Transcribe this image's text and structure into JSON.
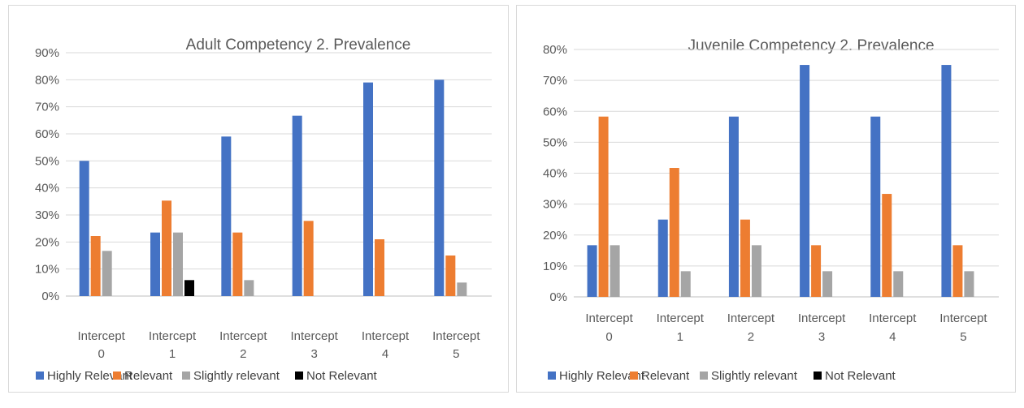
{
  "chart_data": [
    {
      "type": "bar",
      "title": "Adult Competency 2. Prevalence",
      "categories": [
        [
          "Intercept",
          "0"
        ],
        [
          "Intercept",
          "1"
        ],
        [
          "Intercept",
          "2"
        ],
        [
          "Intercept",
          "3"
        ],
        [
          "Intercept",
          "4"
        ],
        [
          "Intercept",
          "5"
        ]
      ],
      "yticks": [
        "0%",
        "10%",
        "20%",
        "30%",
        "40%",
        "50%",
        "60%",
        "70%",
        "80%",
        "90%"
      ],
      "ylim": [
        0,
        90
      ],
      "grid": true,
      "legend_position": "bottom",
      "series": [
        {
          "name": "Highly Relevant",
          "color": "#4472C4",
          "values": [
            50,
            23.5,
            59,
            66.7,
            79,
            80
          ]
        },
        {
          "name": "Relevant",
          "color": "#ED7D31",
          "values": [
            22.2,
            35.3,
            23.5,
            27.8,
            21,
            15
          ]
        },
        {
          "name": "Slightly relevant",
          "color": "#A5A5A5",
          "values": [
            16.7,
            23.5,
            5.9,
            0,
            0,
            5
          ]
        },
        {
          "name": "Not Relevant",
          "color": "#000000",
          "values": [
            0,
            5.9,
            0,
            0,
            0,
            0
          ]
        }
      ]
    },
    {
      "type": "bar",
      "title": "Juvenile Competency 2. Prevalence",
      "categories": [
        [
          "Intercept",
          "0"
        ],
        [
          "Intercept",
          "1"
        ],
        [
          "Intercept",
          "2"
        ],
        [
          "Intercept",
          "3"
        ],
        [
          "Intercept",
          "4"
        ],
        [
          "Intercept",
          "5"
        ]
      ],
      "yticks": [
        "0%",
        "10%",
        "20%",
        "30%",
        "40%",
        "50%",
        "60%",
        "70%",
        "80%"
      ],
      "ylim": [
        0,
        80
      ],
      "grid": true,
      "legend_position": "bottom",
      "series": [
        {
          "name": "Highly Relevant",
          "color": "#4472C4",
          "values": [
            16.7,
            25,
            58.3,
            75,
            58.3,
            75
          ]
        },
        {
          "name": "Relevant",
          "color": "#ED7D31",
          "values": [
            58.3,
            41.7,
            25,
            16.7,
            33.3,
            16.7
          ]
        },
        {
          "name": "Slightly relevant",
          "color": "#A5A5A5",
          "values": [
            16.7,
            8.3,
            16.7,
            8.3,
            8.3,
            8.3
          ]
        },
        {
          "name": "Not Relevant",
          "color": "#000000",
          "values": [
            0,
            0,
            0,
            0,
            0,
            0
          ]
        }
      ]
    }
  ]
}
